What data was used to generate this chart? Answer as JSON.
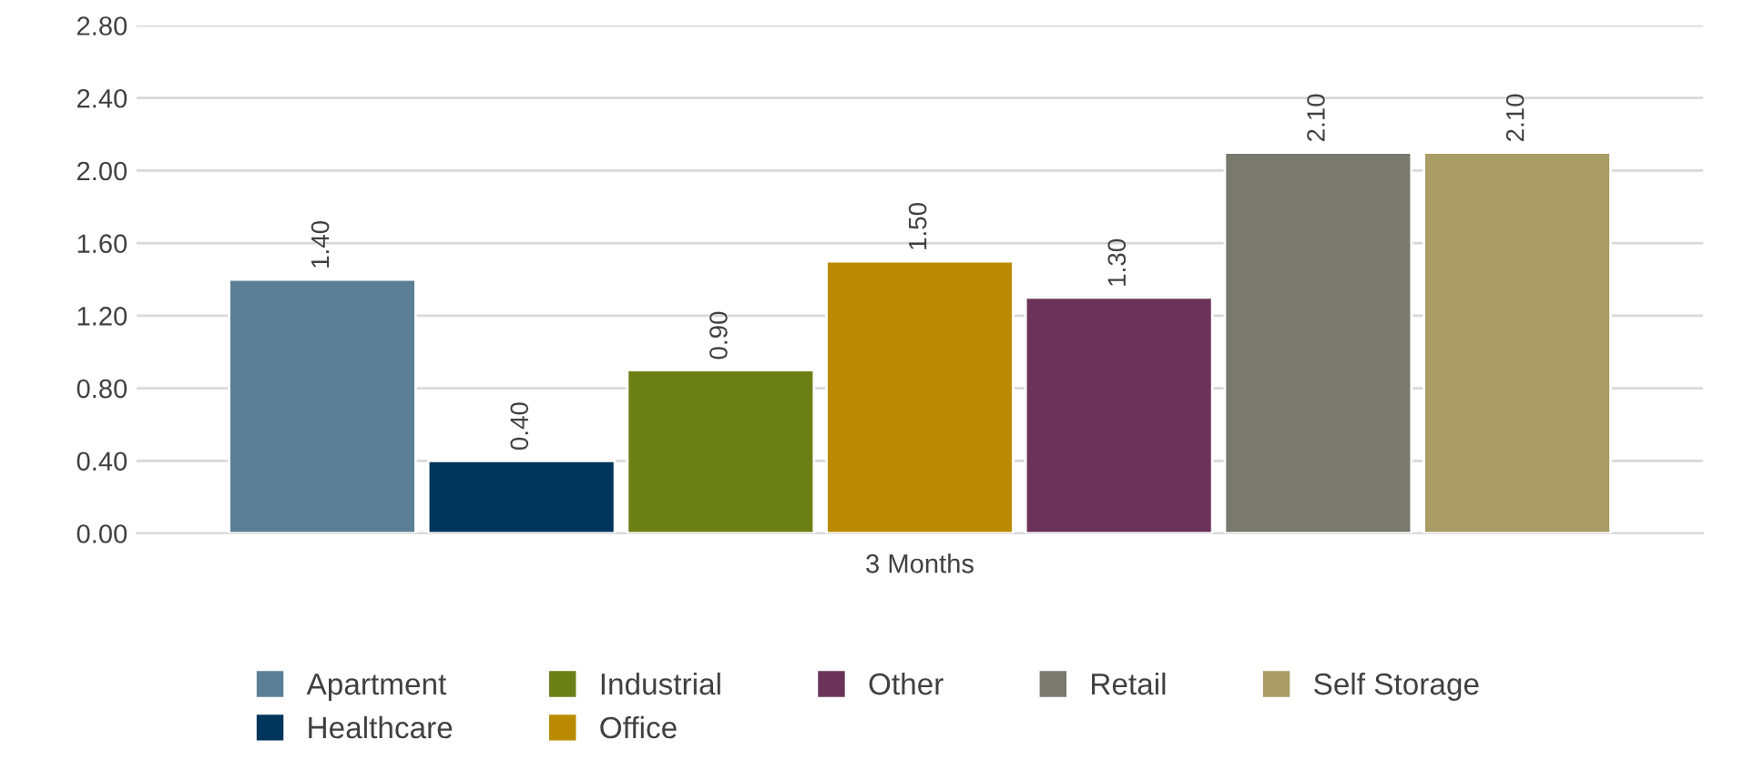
{
  "chart_data": {
    "type": "bar",
    "categories": [
      "3 Months"
    ],
    "series": [
      {
        "name": "Apartment",
        "color": "#5b8096",
        "values": [
          1.4
        ],
        "value_labels": [
          "1.40"
        ]
      },
      {
        "name": "Healthcare",
        "color": "#00365b",
        "values": [
          0.4
        ],
        "value_labels": [
          "0.40"
        ]
      },
      {
        "name": "Industrial",
        "color": "#6c8017",
        "values": [
          0.9
        ],
        "value_labels": [
          "0.90"
        ]
      },
      {
        "name": "Office",
        "color": "#ba8b02",
        "values": [
          1.5
        ],
        "value_labels": [
          "1.50"
        ]
      },
      {
        "name": "Other",
        "color": "#6c335a",
        "values": [
          1.3
        ],
        "value_labels": [
          "1.30"
        ]
      },
      {
        "name": "Retail",
        "color": "#7a796e",
        "values": [
          2.1
        ],
        "value_labels": [
          "2.10"
        ]
      },
      {
        "name": "Self Storage",
        "color": "#a99c64",
        "values": [
          2.1
        ],
        "value_labels": [
          "2.10"
        ]
      }
    ],
    "ylim": [
      0,
      2.8
    ],
    "yticks": [
      {
        "value": 0,
        "label": "0.00"
      },
      {
        "value": 0.4,
        "label": "0.40"
      },
      {
        "value": 0.8,
        "label": "0.80"
      },
      {
        "value": 1.2,
        "label": "1.20"
      },
      {
        "value": 1.6,
        "label": "1.60"
      },
      {
        "value": 2.0,
        "label": "2.00"
      },
      {
        "value": 2.4,
        "label": "2.40"
      },
      {
        "value": 2.8,
        "label": "2.80"
      }
    ],
    "grid": "y",
    "legend": "bottom"
  }
}
